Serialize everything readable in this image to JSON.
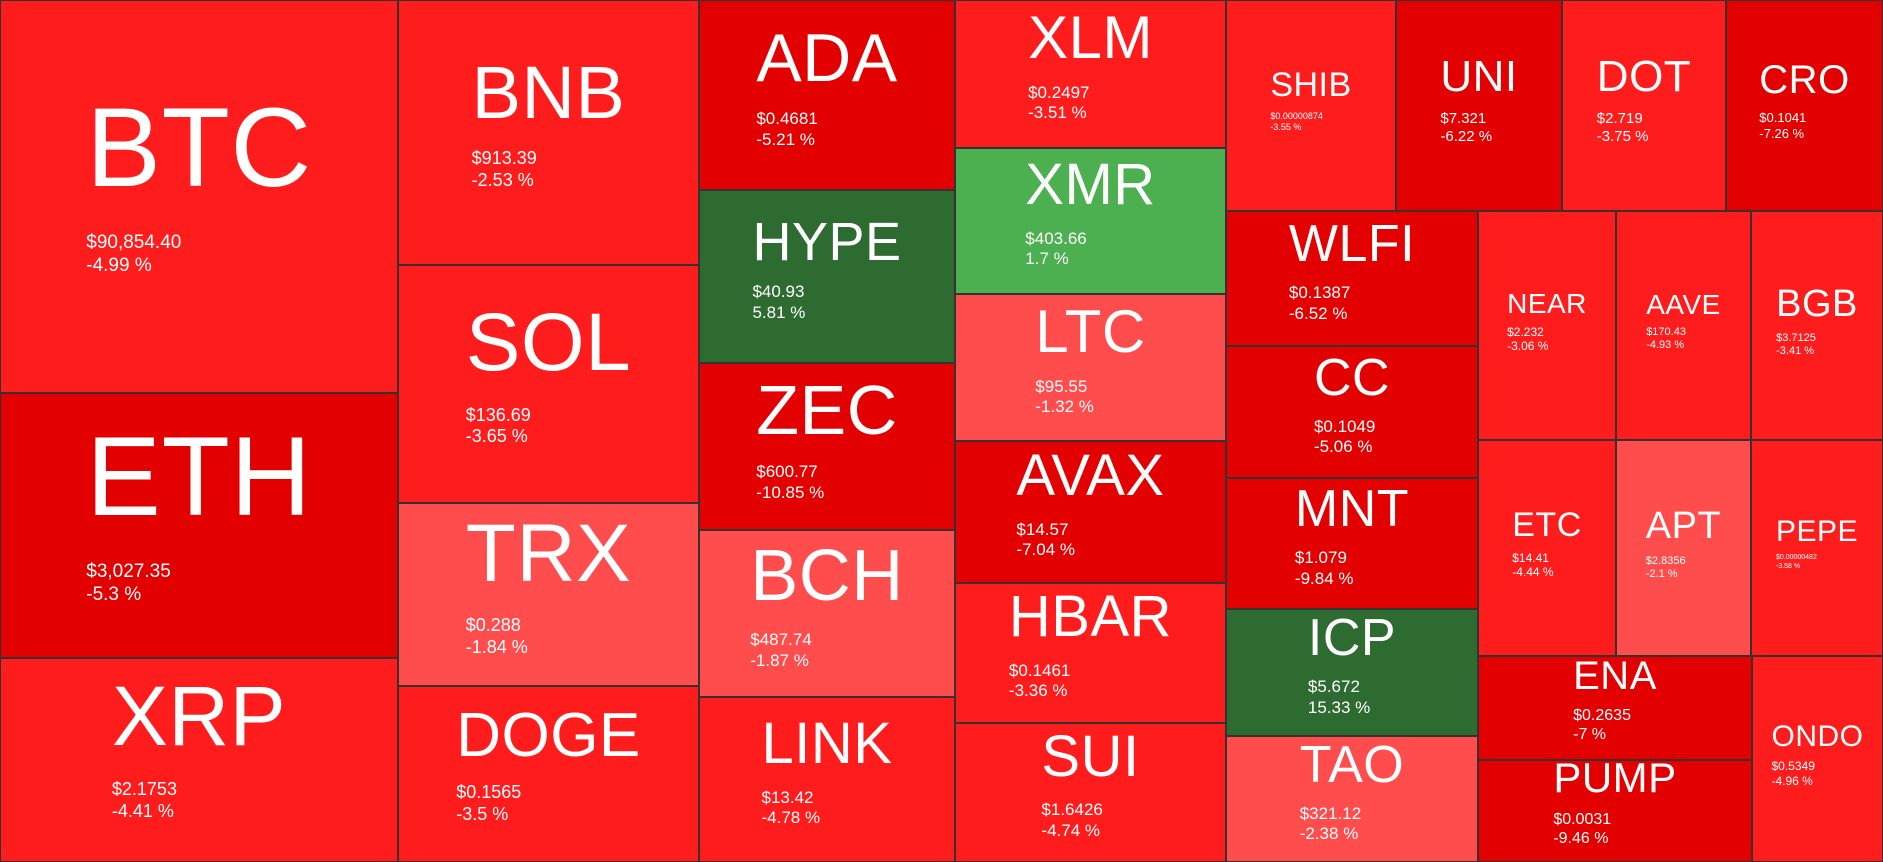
{
  "chart_data": {
    "type": "treemap",
    "colors": {
      "strong_down": "#e30000",
      "down": "#ff1c1c",
      "slight_down": "#ff4d4d",
      "up": "#4caf50",
      "strong_up": "#2e6b30"
    },
    "tiles": [
      {
        "symbol": "BTC",
        "price": "$90,854.40",
        "change": "-4.99 %",
        "change_value": -4.99,
        "color": "#ff1c1c"
      },
      {
        "symbol": "ETH",
        "price": "$3,027.35",
        "change": "-5.3 %",
        "change_value": -5.3,
        "color": "#e30000"
      },
      {
        "symbol": "XRP",
        "price": "$2.1753",
        "change": "-4.41 %",
        "change_value": -4.41,
        "color": "#ff1c1c"
      },
      {
        "symbol": "BNB",
        "price": "$913.39",
        "change": "-2.53 %",
        "change_value": -2.53,
        "color": "#ff1c1c"
      },
      {
        "symbol": "SOL",
        "price": "$136.69",
        "change": "-3.65 %",
        "change_value": -3.65,
        "color": "#ff1c1c"
      },
      {
        "symbol": "TRX",
        "price": "$0.288",
        "change": "-1.84 %",
        "change_value": -1.84,
        "color": "#ff4d4d"
      },
      {
        "symbol": "DOGE",
        "price": "$0.1565",
        "change": "-3.5 %",
        "change_value": -3.5,
        "color": "#ff1c1c"
      },
      {
        "symbol": "ADA",
        "price": "$0.4681",
        "change": "-5.21 %",
        "change_value": -5.21,
        "color": "#e30000"
      },
      {
        "symbol": "HYPE",
        "price": "$40.93",
        "change": "5.81 %",
        "change_value": 5.81,
        "color": "#2e6b30"
      },
      {
        "symbol": "ZEC",
        "price": "$600.77",
        "change": "-10.85 %",
        "change_value": -10.85,
        "color": "#e30000"
      },
      {
        "symbol": "BCH",
        "price": "$487.74",
        "change": "-1.87 %",
        "change_value": -1.87,
        "color": "#ff4d4d"
      },
      {
        "symbol": "LINK",
        "price": "$13.42",
        "change": "-4.78 %",
        "change_value": -4.78,
        "color": "#ff1c1c"
      },
      {
        "symbol": "XLM",
        "price": "$0.2497",
        "change": "-3.51 %",
        "change_value": -3.51,
        "color": "#ff1c1c"
      },
      {
        "symbol": "XMR",
        "price": "$403.66",
        "change": "1.7 %",
        "change_value": 1.7,
        "color": "#4caf50"
      },
      {
        "symbol": "LTC",
        "price": "$95.55",
        "change": "-1.32 %",
        "change_value": -1.32,
        "color": "#ff4d4d"
      },
      {
        "symbol": "AVAX",
        "price": "$14.57",
        "change": "-7.04 %",
        "change_value": -7.04,
        "color": "#e30000"
      },
      {
        "symbol": "HBAR",
        "price": "$0.1461",
        "change": "-3.36 %",
        "change_value": -3.36,
        "color": "#ff1c1c"
      },
      {
        "symbol": "SUI",
        "price": "$1.6426",
        "change": "-4.74 %",
        "change_value": -4.74,
        "color": "#ff1c1c"
      },
      {
        "symbol": "SHIB",
        "price": "$0.00000874",
        "change": "-3.55 %",
        "change_value": -3.55,
        "color": "#ff1c1c"
      },
      {
        "symbol": "UNI",
        "price": "$7.321",
        "change": "-6.22 %",
        "change_value": -6.22,
        "color": "#e30000"
      },
      {
        "symbol": "DOT",
        "price": "$2.719",
        "change": "-3.75 %",
        "change_value": -3.75,
        "color": "#ff1c1c"
      },
      {
        "symbol": "CRO",
        "price": "$0.1041",
        "change": "-7.26 %",
        "change_value": -7.26,
        "color": "#e30000"
      },
      {
        "symbol": "WLFI",
        "price": "$0.1387",
        "change": "-6.52 %",
        "change_value": -6.52,
        "color": "#e30000"
      },
      {
        "symbol": "CC",
        "price": "$0.1049",
        "change": "-5.06 %",
        "change_value": -5.06,
        "color": "#e30000"
      },
      {
        "symbol": "MNT",
        "price": "$1.079",
        "change": "-9.84 %",
        "change_value": -9.84,
        "color": "#e30000"
      },
      {
        "symbol": "ICP",
        "price": "$5.672",
        "change": "15.33 %",
        "change_value": 15.33,
        "color": "#2e6b30"
      },
      {
        "symbol": "TAO",
        "price": "$321.12",
        "change": "-2.38 %",
        "change_value": -2.38,
        "color": "#ff4d4d"
      },
      {
        "symbol": "NEAR",
        "price": "$2.232",
        "change": "-3.06 %",
        "change_value": -3.06,
        "color": "#ff1c1c"
      },
      {
        "symbol": "AAVE",
        "price": "$170.43",
        "change": "-4.93 %",
        "change_value": -4.93,
        "color": "#ff1c1c"
      },
      {
        "symbol": "BGB",
        "price": "$3.7125",
        "change": "-3.41 %",
        "change_value": -3.41,
        "color": "#ff1c1c"
      },
      {
        "symbol": "ETC",
        "price": "$14.41",
        "change": "-4.44 %",
        "change_value": -4.44,
        "color": "#ff1c1c"
      },
      {
        "symbol": "APT",
        "price": "$2.8356",
        "change": "-2.1 %",
        "change_value": -2.1,
        "color": "#ff4d4d"
      },
      {
        "symbol": "PEPE",
        "price": "$0.00000482",
        "change": "-3.58 %",
        "change_value": -3.58,
        "color": "#ff1c1c"
      },
      {
        "symbol": "ENA",
        "price": "$0.2635",
        "change": "-7 %",
        "change_value": -7,
        "color": "#e30000"
      },
      {
        "symbol": "PUMP",
        "price": "$0.0031",
        "change": "-9.46 %",
        "change_value": -9.46,
        "color": "#e30000"
      },
      {
        "symbol": "ONDO",
        "price": "$0.5349",
        "change": "-4.96 %",
        "change_value": -4.96,
        "color": "#ff1c1c"
      }
    ]
  }
}
